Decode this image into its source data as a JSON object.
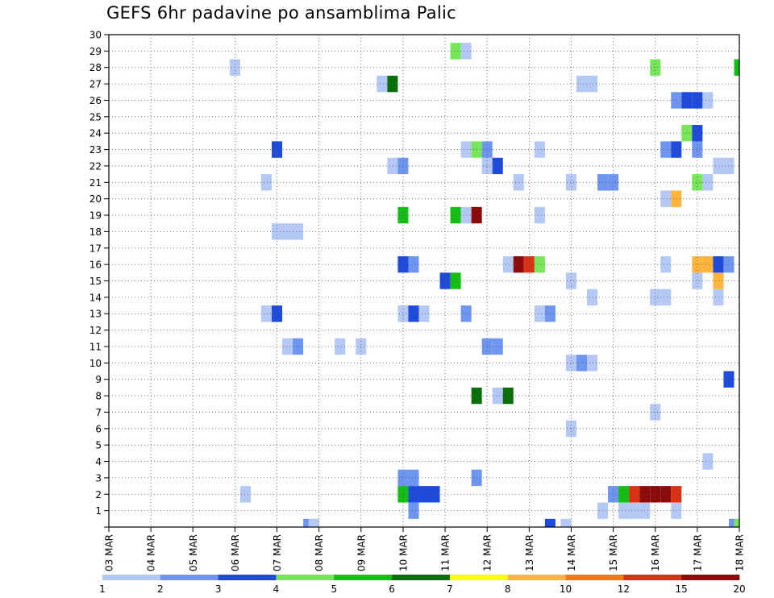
{
  "chart_data": {
    "type": "heatmap",
    "title": "GEFS 6hr padavine po ansamblima Palic",
    "x_ticks": [
      "03 MAR",
      "04 MAR",
      "05 MAR",
      "06 MAR",
      "07 MAR",
      "08 MAR",
      "09 MAR",
      "10 MAR",
      "11 MAR",
      "12 MAR",
      "13 MAR",
      "14 MAR",
      "15 MAR",
      "16 MAR",
      "17 MAR",
      "18 MAR"
    ],
    "y_ticks": [
      "1",
      "2",
      "3",
      "4",
      "5",
      "6",
      "7",
      "8",
      "9",
      "10",
      "11",
      "12",
      "13",
      "14",
      "15",
      "16",
      "17",
      "18",
      "19",
      "20",
      "21",
      "22",
      "23",
      "24",
      "25",
      "26",
      "27",
      "28",
      "29",
      "30"
    ],
    "xlim": [
      0,
      60
    ],
    "ylim": [
      0,
      30
    ],
    "grid": true,
    "legend": {
      "placement": "bottom",
      "colors": [
        "#b4c8f5",
        "#6e96f0",
        "#1e4bdc",
        "#78e65a",
        "#14be14",
        "#0a6e0a",
        "#ffff00",
        "#ffb43c",
        "#ff780a",
        "#dc3214",
        "#8c0a0a"
      ],
      "labels": [
        "1",
        "2",
        "3",
        "4",
        "5",
        "6",
        "7",
        "8",
        "10",
        "12",
        "15",
        "20"
      ]
    },
    "cells": [
      [
        19,
        0,
        2
      ],
      [
        19.5,
        0,
        1
      ],
      [
        42,
        0,
        3
      ],
      [
        43.5,
        0,
        1
      ],
      [
        59.5,
        0,
        2
      ],
      [
        60,
        0,
        4
      ],
      [
        29,
        1,
        2
      ],
      [
        47,
        1,
        1
      ],
      [
        49,
        1,
        1
      ],
      [
        50,
        1,
        1
      ],
      [
        51,
        1,
        1
      ],
      [
        54,
        1,
        1
      ],
      [
        13,
        2,
        1
      ],
      [
        28,
        2,
        5
      ],
      [
        29,
        2,
        3
      ],
      [
        30,
        2,
        3
      ],
      [
        31,
        2,
        3
      ],
      [
        48,
        2,
        2
      ],
      [
        49,
        2,
        5
      ],
      [
        50,
        2,
        10
      ],
      [
        51,
        2,
        15
      ],
      [
        52,
        2,
        20
      ],
      [
        53,
        2,
        15
      ],
      [
        54,
        2,
        10
      ],
      [
        28,
        3,
        2
      ],
      [
        29,
        3,
        2
      ],
      [
        35,
        3,
        2
      ],
      [
        57,
        4,
        1
      ],
      [
        44,
        6,
        1
      ],
      [
        52,
        7,
        1
      ],
      [
        35,
        8,
        6
      ],
      [
        37,
        8,
        1
      ],
      [
        38,
        8,
        6
      ],
      [
        59,
        9,
        3
      ],
      [
        44,
        10,
        1
      ],
      [
        45,
        10,
        2
      ],
      [
        46,
        10,
        1
      ],
      [
        17,
        11,
        1
      ],
      [
        18,
        11,
        2
      ],
      [
        22,
        11,
        1
      ],
      [
        24,
        11,
        1
      ],
      [
        36,
        11,
        2
      ],
      [
        37,
        11,
        2
      ],
      [
        15,
        13,
        1
      ],
      [
        16,
        13,
        3
      ],
      [
        28,
        13,
        1
      ],
      [
        29,
        13,
        3
      ],
      [
        30,
        13,
        1
      ],
      [
        34,
        13,
        2
      ],
      [
        41,
        13,
        1
      ],
      [
        42,
        13,
        2
      ],
      [
        46,
        14,
        1
      ],
      [
        52,
        14,
        1
      ],
      [
        53,
        14,
        1
      ],
      [
        58,
        14,
        1
      ],
      [
        32,
        15,
        3
      ],
      [
        33,
        15,
        5
      ],
      [
        44,
        15,
        1
      ],
      [
        56,
        15,
        1
      ],
      [
        58,
        15,
        8
      ],
      [
        28,
        16,
        3
      ],
      [
        29,
        16,
        2
      ],
      [
        38,
        16,
        1
      ],
      [
        39,
        16,
        12
      ],
      [
        40,
        16,
        10
      ],
      [
        41,
        16,
        4
      ],
      [
        53,
        16,
        1
      ],
      [
        56,
        16,
        8
      ],
      [
        57,
        16,
        8
      ],
      [
        58,
        16,
        3
      ],
      [
        59,
        16,
        2
      ],
      [
        16,
        18,
        1
      ],
      [
        17,
        18,
        1
      ],
      [
        18,
        18,
        1
      ],
      [
        28,
        19,
        5
      ],
      [
        33,
        19,
        5
      ],
      [
        34,
        19,
        1
      ],
      [
        35,
        19,
        20
      ],
      [
        41,
        19,
        1
      ],
      [
        53,
        20,
        1
      ],
      [
        54,
        20,
        8
      ],
      [
        15,
        21,
        1
      ],
      [
        39,
        21,
        1
      ],
      [
        44,
        21,
        1
      ],
      [
        47,
        21,
        2
      ],
      [
        48,
        21,
        2
      ],
      [
        56,
        21,
        4
      ],
      [
        57,
        21,
        1
      ],
      [
        27,
        22,
        1
      ],
      [
        28,
        22,
        2
      ],
      [
        36,
        22,
        1
      ],
      [
        37,
        22,
        3
      ],
      [
        58,
        22,
        1
      ],
      [
        59,
        22,
        1
      ],
      [
        16,
        23,
        3
      ],
      [
        34,
        23,
        1
      ],
      [
        35,
        23,
        4
      ],
      [
        36,
        23,
        2
      ],
      [
        41,
        23,
        1
      ],
      [
        53,
        23,
        2
      ],
      [
        54,
        23,
        3
      ],
      [
        56,
        23,
        2
      ],
      [
        55,
        24,
        4
      ],
      [
        56,
        24,
        3
      ],
      [
        54,
        26,
        2
      ],
      [
        55,
        26,
        3
      ],
      [
        56,
        26,
        3
      ],
      [
        57,
        26,
        1
      ],
      [
        45,
        27,
        1
      ],
      [
        46,
        27,
        1
      ],
      [
        26,
        27,
        1
      ],
      [
        27,
        27,
        6
      ],
      [
        12,
        28,
        1
      ],
      [
        52,
        28,
        4
      ],
      [
        60,
        28,
        5
      ],
      [
        33,
        29,
        4
      ],
      [
        34,
        29,
        1
      ]
    ]
  }
}
